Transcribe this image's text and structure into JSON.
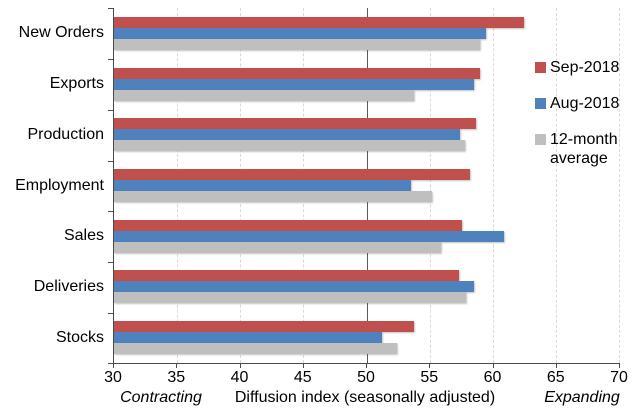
{
  "chart_data": {
    "type": "bar",
    "orientation": "horizontal",
    "title": "",
    "xlabel": "Diffusion index (seasonally adjusted)",
    "ylabel": "",
    "xlim": [
      30,
      70
    ],
    "x_ticks": [
      30,
      35,
      40,
      45,
      50,
      55,
      60,
      65,
      70
    ],
    "reference_line": 50,
    "grid": "vertical-dashed",
    "legend_position": "right",
    "left_annotation": "Contracting",
    "right_annotation": "Expanding",
    "categories": [
      "New Orders",
      "Exports",
      "Production",
      "Employment",
      "Sales",
      "Deliveries",
      "Stocks"
    ],
    "series": [
      {
        "name": "Sep-2018",
        "color": "#C0504D",
        "values": [
          62.5,
          59.0,
          58.7,
          58.2,
          57.6,
          57.3,
          53.8
        ]
      },
      {
        "name": "Aug-2018",
        "color": "#4F81BD",
        "values": [
          59.5,
          58.5,
          57.4,
          53.5,
          60.9,
          58.5,
          51.2
        ]
      },
      {
        "name": "12-month average",
        "color": "#BFBFBF",
        "values": [
          59.0,
          53.8,
          57.8,
          55.2,
          55.9,
          57.9,
          52.4
        ]
      }
    ],
    "axis_color": "#4a4a4a",
    "gridline_color": "#d9d9d9"
  }
}
